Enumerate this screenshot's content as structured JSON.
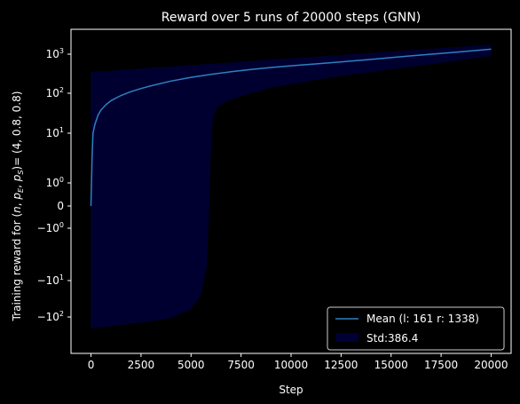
{
  "chart_data": {
    "type": "line",
    "title": "Reward over 5 runs of 20000 steps (GNN)",
    "xlabel": "Step",
    "ylabel_prefix": "Training reward for (",
    "ylabel_vars": [
      "n",
      "p",
      "E",
      "p",
      "S"
    ],
    "ylabel_suffix": ")= (4, 0.8, 0.8)",
    "y_scale": "symlog",
    "xlim": [
      -1000,
      21000
    ],
    "x_ticks": [
      0,
      2500,
      5000,
      7500,
      10000,
      12500,
      15000,
      17500,
      20000
    ],
    "y_ticks": [
      {
        "value": 1000,
        "base": "10",
        "exp": "3"
      },
      {
        "value": 100,
        "base": "10",
        "exp": "2"
      },
      {
        "value": 10,
        "base": "10",
        "exp": "1"
      },
      {
        "value": 1,
        "base": "10",
        "exp": "0"
      },
      {
        "value": 0,
        "base": "0",
        "exp": ""
      },
      {
        "value": -1,
        "base": "−10",
        "exp": "0"
      },
      {
        "value": -10,
        "base": "−10",
        "exp": "1"
      },
      {
        "value": -100,
        "base": "−10",
        "exp": "2"
      }
    ],
    "series": [
      {
        "name": "Mean (l: 161 r: 1338)",
        "color": "#2f7fc1",
        "x": [
          0,
          50,
          100,
          200,
          350,
          500,
          750,
          1000,
          1500,
          2000,
          2500,
          3000,
          4000,
          5000,
          6000,
          7000,
          8000,
          9000,
          10000,
          12000,
          14000,
          16000,
          18000,
          20000
        ],
        "y": [
          0,
          3,
          10,
          17,
          28,
          38,
          52,
          65,
          88,
          110,
          132,
          155,
          205,
          255,
          305,
          355,
          405,
          455,
          505,
          605,
          735,
          905,
          1100,
          1338
        ]
      }
    ],
    "band": {
      "name": "Std:386.4",
      "color": "#000033",
      "x_upper": [
        0,
        20000
      ],
      "upper": [
        350,
        1750
      ],
      "x_lower": [
        0,
        500,
        1000,
        2000,
        3000,
        4000,
        5000,
        5500,
        5800,
        5900,
        6000,
        6100,
        6300,
        6700,
        7500,
        9000,
        11000,
        13000,
        15000,
        17000,
        20000
      ],
      "lower": [
        -300,
        -270,
        -240,
        -190,
        -150,
        -110,
        -60,
        -25,
        -5,
        0,
        5,
        25,
        45,
        60,
        85,
        140,
        210,
        300,
        410,
        560,
        900
      ]
    },
    "legend_position": "lower-right"
  }
}
